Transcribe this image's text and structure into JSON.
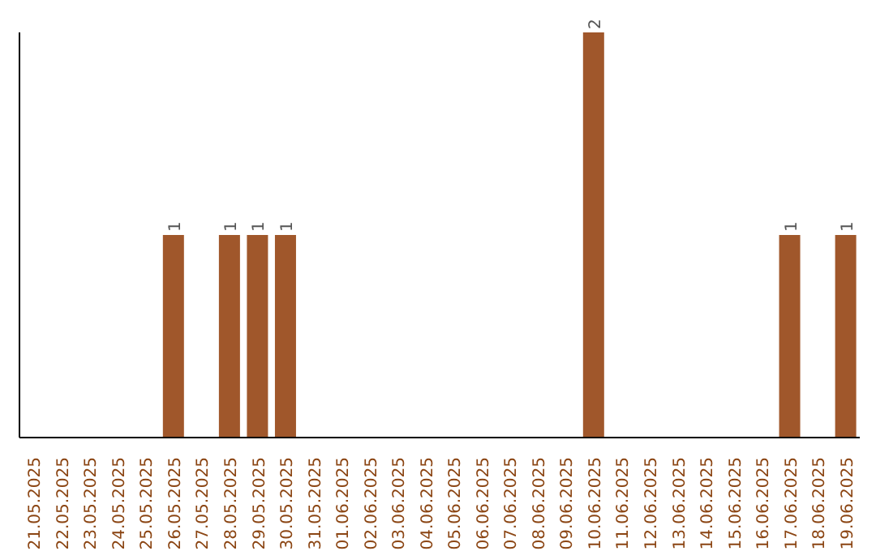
{
  "chart_data": {
    "type": "bar",
    "categories": [
      "21.05.2025",
      "22.05.2025",
      "23.05.2025",
      "24.05.2025",
      "25.05.2025",
      "26.05.2025",
      "27.05.2025",
      "28.05.2025",
      "29.05.2025",
      "30.05.2025",
      "31.05.2025",
      "01.06.2025",
      "02.06.2025",
      "03.06.2025",
      "04.06.2025",
      "05.06.2025",
      "06.06.2025",
      "07.06.2025",
      "08.06.2025",
      "09.06.2025",
      "10.06.2025",
      "11.06.2025",
      "12.06.2025",
      "13.06.2025",
      "14.06.2025",
      "15.06.2025",
      "16.06.2025",
      "17.06.2025",
      "18.06.2025",
      "19.06.2025"
    ],
    "values": [
      0,
      0,
      0,
      0,
      0,
      1,
      0,
      1,
      1,
      1,
      0,
      0,
      0,
      0,
      0,
      0,
      0,
      0,
      0,
      0,
      2,
      0,
      0,
      0,
      0,
      0,
      0,
      1,
      0,
      1
    ],
    "color": "#a0572b",
    "value_labels": [
      null,
      null,
      null,
      null,
      null,
      "1",
      null,
      "1",
      "1",
      "1",
      null,
      null,
      null,
      null,
      null,
      null,
      null,
      null,
      null,
      null,
      "2",
      null,
      null,
      null,
      null,
      null,
      null,
      "1",
      null,
      "1"
    ]
  }
}
